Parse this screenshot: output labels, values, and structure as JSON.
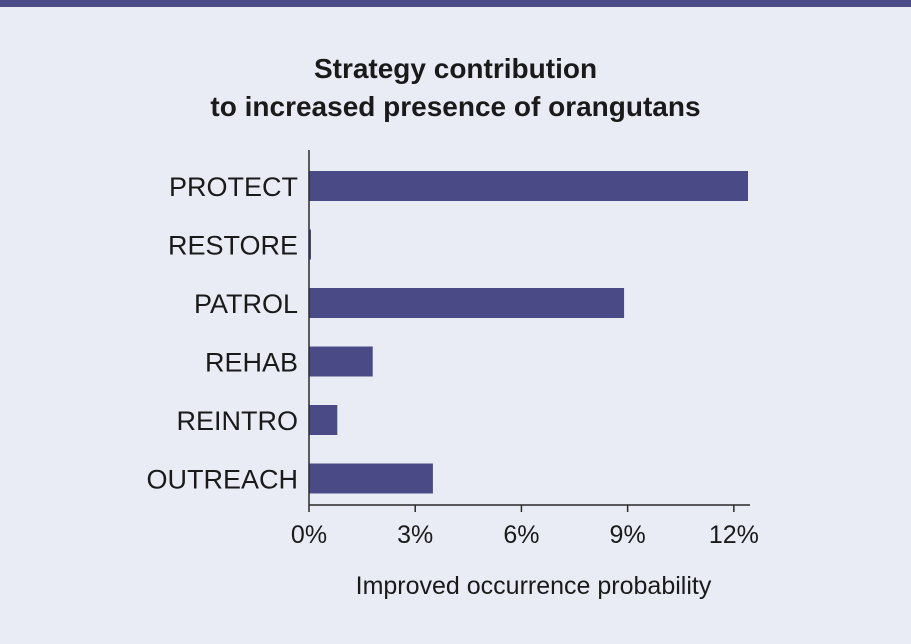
{
  "chart_data": {
    "type": "bar",
    "orientation": "horizontal",
    "title_lines": [
      "Strategy contribution",
      "to increased presence of orangutans"
    ],
    "categories": [
      "PROTECT",
      "RESTORE",
      "PATROL",
      "REHAB",
      "REINTRO",
      "OUTREACH"
    ],
    "values": [
      12.4,
      0.05,
      8.9,
      1.8,
      0.8,
      3.5
    ],
    "xlabel": "Improved occurrence probability",
    "xlim": [
      0,
      12.4
    ],
    "xticks": [
      0,
      3,
      6,
      9,
      12
    ],
    "xtick_labels": [
      "0%",
      "3%",
      "6%",
      "9%",
      "12%"
    ],
    "grid": false,
    "bar_color": "#4a4b86"
  },
  "colors": {
    "background": "#e9ecf5",
    "top_rule": "#4a4b86"
  }
}
